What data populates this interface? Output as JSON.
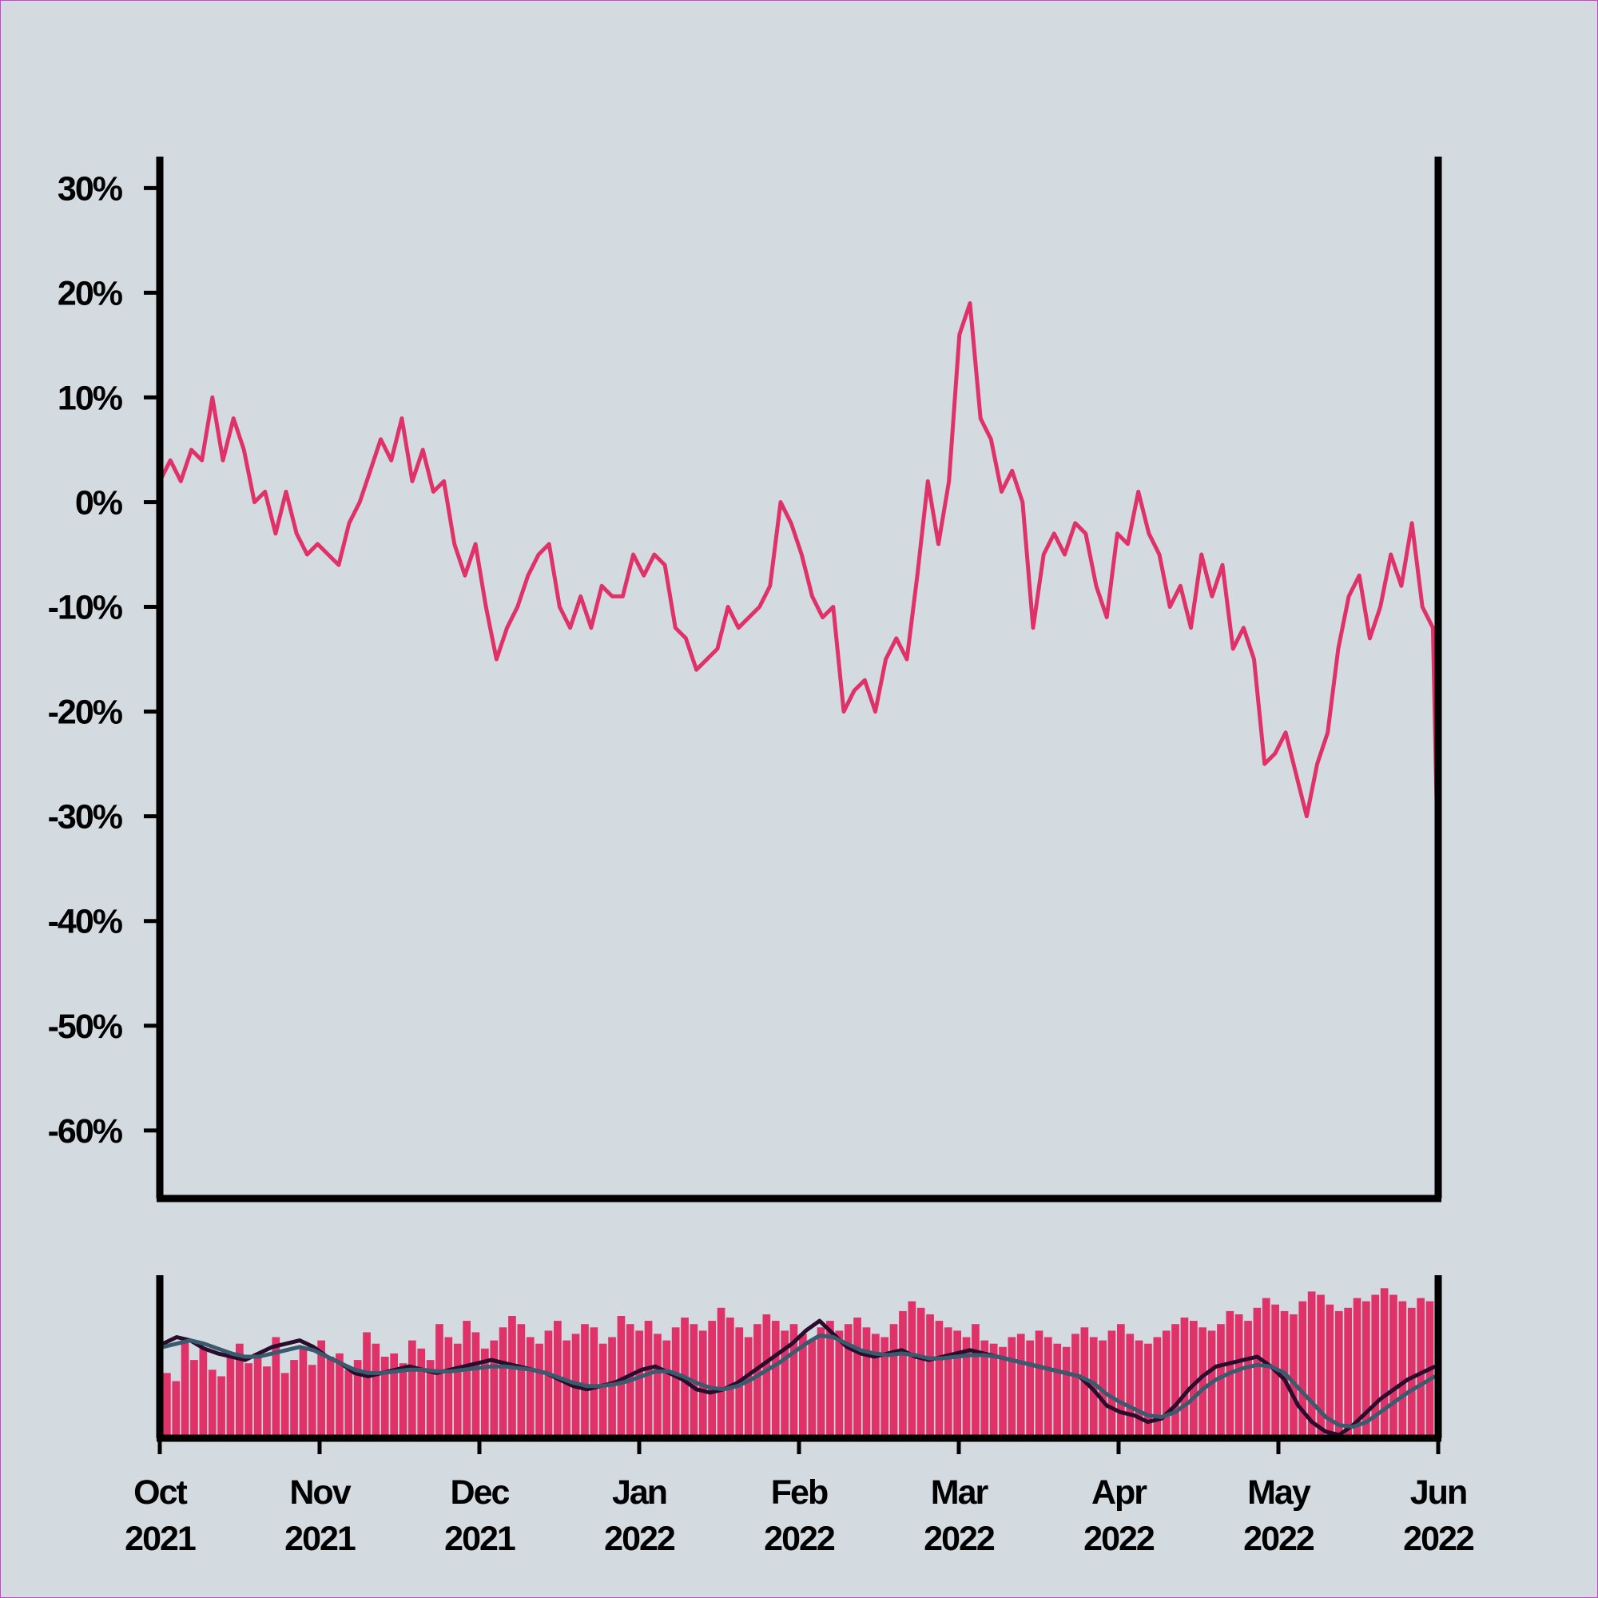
{
  "chart_data": [
    {
      "type": "line",
      "panel": "main",
      "title": "",
      "xlabel": "",
      "ylabel": "",
      "y_unit": "%",
      "ylim": [
        -66.5,
        33
      ],
      "yticks": [
        30,
        20,
        10,
        0,
        -10,
        -20,
        -30,
        -40,
        -50,
        -60
      ],
      "ytick_labels": [
        "30%",
        "20%",
        "10%",
        "0%",
        "-10%",
        "-20%",
        "-30%",
        "-40%",
        "-50%",
        "-60%"
      ],
      "xlim": [
        "2021-10-01",
        "2022-06-01"
      ],
      "grid": false,
      "series": [
        {
          "color": "#de3268",
          "points": [
            [
              "2021-10-01",
              2
            ],
            [
              "2021-10-03",
              4
            ],
            [
              "2021-10-05",
              2
            ],
            [
              "2021-10-07",
              5
            ],
            [
              "2021-10-09",
              4
            ],
            [
              "2021-10-11",
              10
            ],
            [
              "2021-10-13",
              4
            ],
            [
              "2021-10-15",
              8
            ],
            [
              "2021-10-17",
              5
            ],
            [
              "2021-10-19",
              0
            ],
            [
              "2021-10-21",
              1
            ],
            [
              "2021-10-23",
              -3
            ],
            [
              "2021-10-25",
              1
            ],
            [
              "2021-10-27",
              -3
            ],
            [
              "2021-10-29",
              -5
            ],
            [
              "2021-10-31",
              -4
            ],
            [
              "2021-11-02",
              -5
            ],
            [
              "2021-11-04",
              -6
            ],
            [
              "2021-11-06",
              -2
            ],
            [
              "2021-11-08",
              0
            ],
            [
              "2021-11-10",
              3
            ],
            [
              "2021-11-12",
              6
            ],
            [
              "2021-11-14",
              4
            ],
            [
              "2021-11-16",
              8
            ],
            [
              "2021-11-18",
              2
            ],
            [
              "2021-11-20",
              5
            ],
            [
              "2021-11-22",
              1
            ],
            [
              "2021-11-24",
              2
            ],
            [
              "2021-11-26",
              -4
            ],
            [
              "2021-11-28",
              -7
            ],
            [
              "2021-11-30",
              -4
            ],
            [
              "2021-12-02",
              -10
            ],
            [
              "2021-12-04",
              -15
            ],
            [
              "2021-12-06",
              -12
            ],
            [
              "2021-12-08",
              -10
            ],
            [
              "2021-12-10",
              -7
            ],
            [
              "2021-12-12",
              -5
            ],
            [
              "2021-12-14",
              -4
            ],
            [
              "2021-12-16",
              -10
            ],
            [
              "2021-12-18",
              -12
            ],
            [
              "2021-12-20",
              -9
            ],
            [
              "2021-12-22",
              -12
            ],
            [
              "2021-12-24",
              -8
            ],
            [
              "2021-12-26",
              -9
            ],
            [
              "2021-12-28",
              -9
            ],
            [
              "2021-12-30",
              -5
            ],
            [
              "2022-01-01",
              -7
            ],
            [
              "2022-01-03",
              -5
            ],
            [
              "2022-01-05",
              -6
            ],
            [
              "2022-01-07",
              -12
            ],
            [
              "2022-01-09",
              -13
            ],
            [
              "2022-01-11",
              -16
            ],
            [
              "2022-01-13",
              -15
            ],
            [
              "2022-01-15",
              -14
            ],
            [
              "2022-01-17",
              -10
            ],
            [
              "2022-01-19",
              -12
            ],
            [
              "2022-01-21",
              -11
            ],
            [
              "2022-01-23",
              -10
            ],
            [
              "2022-01-25",
              -8
            ],
            [
              "2022-01-27",
              0
            ],
            [
              "2022-01-29",
              -2
            ],
            [
              "2022-01-31",
              -5
            ],
            [
              "2022-02-02",
              -9
            ],
            [
              "2022-02-04",
              -11
            ],
            [
              "2022-02-06",
              -10
            ],
            [
              "2022-02-08",
              -20
            ],
            [
              "2022-02-10",
              -18
            ],
            [
              "2022-02-12",
              -17
            ],
            [
              "2022-02-14",
              -20
            ],
            [
              "2022-02-16",
              -15
            ],
            [
              "2022-02-18",
              -13
            ],
            [
              "2022-02-20",
              -15
            ],
            [
              "2022-02-22",
              -7
            ],
            [
              "2022-02-24",
              2
            ],
            [
              "2022-02-26",
              -4
            ],
            [
              "2022-02-28",
              2
            ],
            [
              "2022-03-02",
              16
            ],
            [
              "2022-03-04",
              19
            ],
            [
              "2022-03-06",
              8
            ],
            [
              "2022-03-08",
              6
            ],
            [
              "2022-03-10",
              1
            ],
            [
              "2022-03-12",
              3
            ],
            [
              "2022-03-14",
              0
            ],
            [
              "2022-03-16",
              -12
            ],
            [
              "2022-03-18",
              -5
            ],
            [
              "2022-03-20",
              -3
            ],
            [
              "2022-03-22",
              -5
            ],
            [
              "2022-03-24",
              -2
            ],
            [
              "2022-03-26",
              -3
            ],
            [
              "2022-03-28",
              -8
            ],
            [
              "2022-03-30",
              -11
            ],
            [
              "2022-04-01",
              -3
            ],
            [
              "2022-04-03",
              -4
            ],
            [
              "2022-04-05",
              1
            ],
            [
              "2022-04-07",
              -3
            ],
            [
              "2022-04-09",
              -5
            ],
            [
              "2022-04-11",
              -10
            ],
            [
              "2022-04-13",
              -8
            ],
            [
              "2022-04-15",
              -12
            ],
            [
              "2022-04-17",
              -5
            ],
            [
              "2022-04-19",
              -9
            ],
            [
              "2022-04-21",
              -6
            ],
            [
              "2022-04-23",
              -14
            ],
            [
              "2022-04-25",
              -12
            ],
            [
              "2022-04-27",
              -15
            ],
            [
              "2022-04-29",
              -25
            ],
            [
              "2022-05-01",
              -24
            ],
            [
              "2022-05-03",
              -22
            ],
            [
              "2022-05-05",
              -26
            ],
            [
              "2022-05-07",
              -30
            ],
            [
              "2022-05-09",
              -25
            ],
            [
              "2022-05-11",
              -22
            ],
            [
              "2022-05-13",
              -14
            ],
            [
              "2022-05-15",
              -9
            ],
            [
              "2022-05-17",
              -7
            ],
            [
              "2022-05-19",
              -13
            ],
            [
              "2022-05-21",
              -10
            ],
            [
              "2022-05-23",
              -5
            ],
            [
              "2022-05-25",
              -8
            ],
            [
              "2022-05-27",
              -2
            ],
            [
              "2022-05-29",
              -10
            ],
            [
              "2022-05-31",
              -12
            ],
            [
              "2022-06-01",
              -36
            ],
            [
              "2022-06-01",
              4
            ]
          ]
        }
      ]
    },
    {
      "type": "bar",
      "panel": "lower",
      "title": "",
      "xlabel": "",
      "ylabel": "",
      "xlim": [
        "2021-10-01",
        "2022-06-01"
      ],
      "xtick_labels": [
        [
          "Oct",
          "2021"
        ],
        [
          "Nov",
          "2021"
        ],
        [
          "Dec",
          "2021"
        ],
        [
          "Jan",
          "2022"
        ],
        [
          "Feb",
          "2022"
        ],
        [
          "Mar",
          "2022"
        ],
        [
          "Apr",
          "2022"
        ],
        [
          "May",
          "2022"
        ],
        [
          "Jun",
          "2022"
        ]
      ],
      "grid": false,
      "bar_color": "#de3268",
      "bars": [
        40,
        35,
        60,
        48,
        55,
        42,
        38,
        52,
        58,
        46,
        50,
        44,
        62,
        40,
        48,
        55,
        45,
        60,
        50,
        52,
        42,
        48,
        65,
        58,
        50,
        52,
        46,
        60,
        55,
        48,
        70,
        62,
        58,
        72,
        65,
        55,
        60,
        68,
        75,
        70,
        62,
        58,
        66,
        72,
        60,
        64,
        70,
        68,
        58,
        62,
        75,
        70,
        66,
        72,
        64,
        60,
        68,
        74,
        70,
        66,
        72,
        80,
        74,
        68,
        62,
        70,
        76,
        72,
        66,
        70,
        64,
        60,
        68,
        72,
        66,
        70,
        74,
        68,
        64,
        62,
        70,
        78,
        84,
        80,
        76,
        72,
        68,
        66,
        62,
        70,
        60,
        58,
        56,
        62,
        64,
        60,
        66,
        62,
        58,
        56,
        64,
        68,
        62,
        60,
        66,
        70,
        64,
        60,
        58,
        62,
        66,
        70,
        74,
        72,
        68,
        66,
        70,
        78,
        76,
        72,
        80,
        86,
        82,
        78,
        76,
        84,
        90,
        88,
        82,
        78,
        80,
        86,
        84,
        88,
        92,
        88,
        84,
        80,
        86,
        84
      ],
      "series": [
        {
          "color": "#2a0d2c",
          "values": [
            58,
            62,
            60,
            55,
            52,
            50,
            48,
            52,
            56,
            58,
            60,
            56,
            50,
            46,
            40,
            38,
            40,
            42,
            44,
            42,
            40,
            42,
            44,
            46,
            48,
            46,
            44,
            42,
            40,
            36,
            32,
            30,
            32,
            34,
            38,
            42,
            44,
            40,
            36,
            30,
            28,
            30,
            34,
            40,
            46,
            52,
            58,
            66,
            72,
            64,
            56,
            52,
            50,
            52,
            54,
            50,
            48,
            50,
            52,
            54,
            52,
            50,
            48,
            46,
            44,
            42,
            40,
            38,
            30,
            20,
            16,
            14,
            10,
            12,
            20,
            30,
            38,
            44,
            46,
            48,
            50,
            44,
            36,
            20,
            10,
            4,
            2,
            8,
            16,
            24,
            30,
            36,
            40,
            44
          ]
        },
        {
          "color": "#3a5a6e",
          "values": [
            56,
            58,
            60,
            58,
            55,
            52,
            50,
            50,
            52,
            54,
            56,
            54,
            50,
            46,
            42,
            40,
            40,
            41,
            42,
            42,
            41,
            41,
            42,
            43,
            44,
            44,
            43,
            42,
            40,
            37,
            34,
            32,
            32,
            33,
            35,
            38,
            41,
            41,
            38,
            34,
            31,
            30,
            32,
            36,
            41,
            46,
            52,
            58,
            63,
            62,
            58,
            54,
            52,
            51,
            52,
            51,
            49,
            49,
            50,
            51,
            51,
            50,
            48,
            46,
            44,
            42,
            40,
            38,
            34,
            27,
            22,
            18,
            14,
            13,
            16,
            22,
            30,
            36,
            40,
            43,
            45,
            44,
            40,
            31,
            22,
            13,
            8,
            7,
            10,
            16,
            22,
            28,
            33,
            38
          ]
        }
      ]
    }
  ]
}
